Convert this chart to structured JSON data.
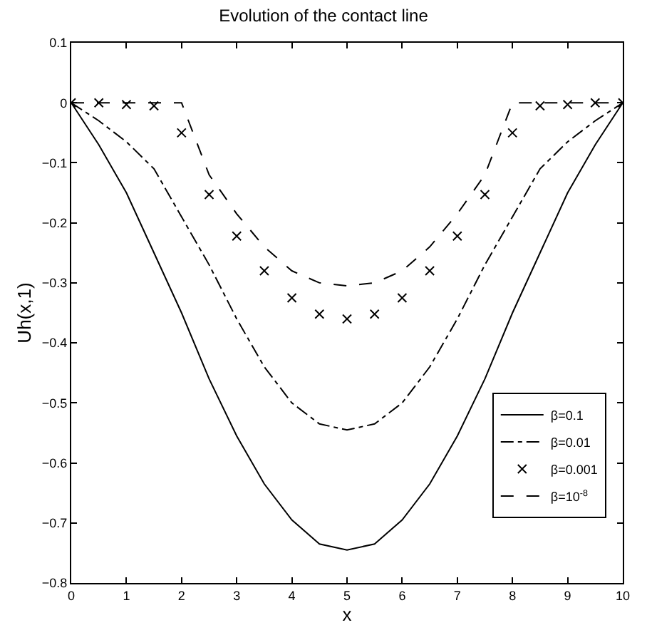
{
  "chart_data": {
    "type": "line",
    "title": "Evolution of the contact line",
    "xlabel": "x",
    "ylabel": "Uh(x,1)",
    "x": [
      0,
      0.5,
      1,
      1.5,
      2,
      2.5,
      3,
      3.5,
      4,
      4.5,
      5,
      5.5,
      6,
      6.5,
      7,
      7.5,
      8,
      8.5,
      9,
      9.5,
      10
    ],
    "series": [
      {
        "name": "β=0.1",
        "color": "#000000",
        "line_style": "solid",
        "values": [
          0,
          -0.07,
          -0.15,
          -0.25,
          -0.35,
          -0.46,
          -0.555,
          -0.635,
          -0.695,
          -0.735,
          -0.745,
          -0.735,
          -0.695,
          -0.635,
          -0.555,
          -0.46,
          -0.35,
          -0.25,
          -0.15,
          -0.07,
          0
        ]
      },
      {
        "name": "β=0.01",
        "color": "#000000",
        "line_style": "dashdot",
        "values": [
          0,
          -0.03,
          -0.065,
          -0.11,
          -0.19,
          -0.27,
          -0.36,
          -0.44,
          -0.5,
          -0.535,
          -0.545,
          -0.535,
          -0.5,
          -0.44,
          -0.36,
          -0.27,
          -0.19,
          -0.11,
          -0.065,
          -0.03,
          0
        ]
      },
      {
        "name": "β=0.001",
        "type": "scatter",
        "marker": "cross",
        "color": "#000000",
        "values": [
          0,
          0,
          -0.003,
          -0.005,
          -0.05,
          -0.153,
          -0.222,
          -0.28,
          -0.325,
          -0.352,
          -0.36,
          -0.352,
          -0.325,
          -0.28,
          -0.222,
          -0.153,
          -0.05,
          -0.005,
          -0.003,
          0,
          0
        ]
      },
      {
        "name": "β=10$^{-8}$",
        "color": "#000000",
        "line_style": "dashed",
        "values": [
          0,
          0,
          0,
          0,
          0,
          -0.12,
          -0.185,
          -0.24,
          -0.28,
          -0.3,
          -0.305,
          -0.3,
          -0.28,
          -0.24,
          -0.185,
          -0.12,
          0,
          0,
          0,
          0,
          0
        ]
      }
    ],
    "xlim": [
      0,
      10
    ],
    "xticks": [
      0,
      1,
      2,
      3,
      4,
      5,
      6,
      7,
      8,
      9,
      10
    ],
    "ylim": [
      -0.8,
      0.1
    ],
    "yticks": [
      -0.8,
      -0.7,
      -0.6,
      -0.5,
      -0.4,
      -0.3,
      -0.2,
      -0.1,
      0,
      0.1
    ],
    "grid": false,
    "legend": "bottom right"
  }
}
